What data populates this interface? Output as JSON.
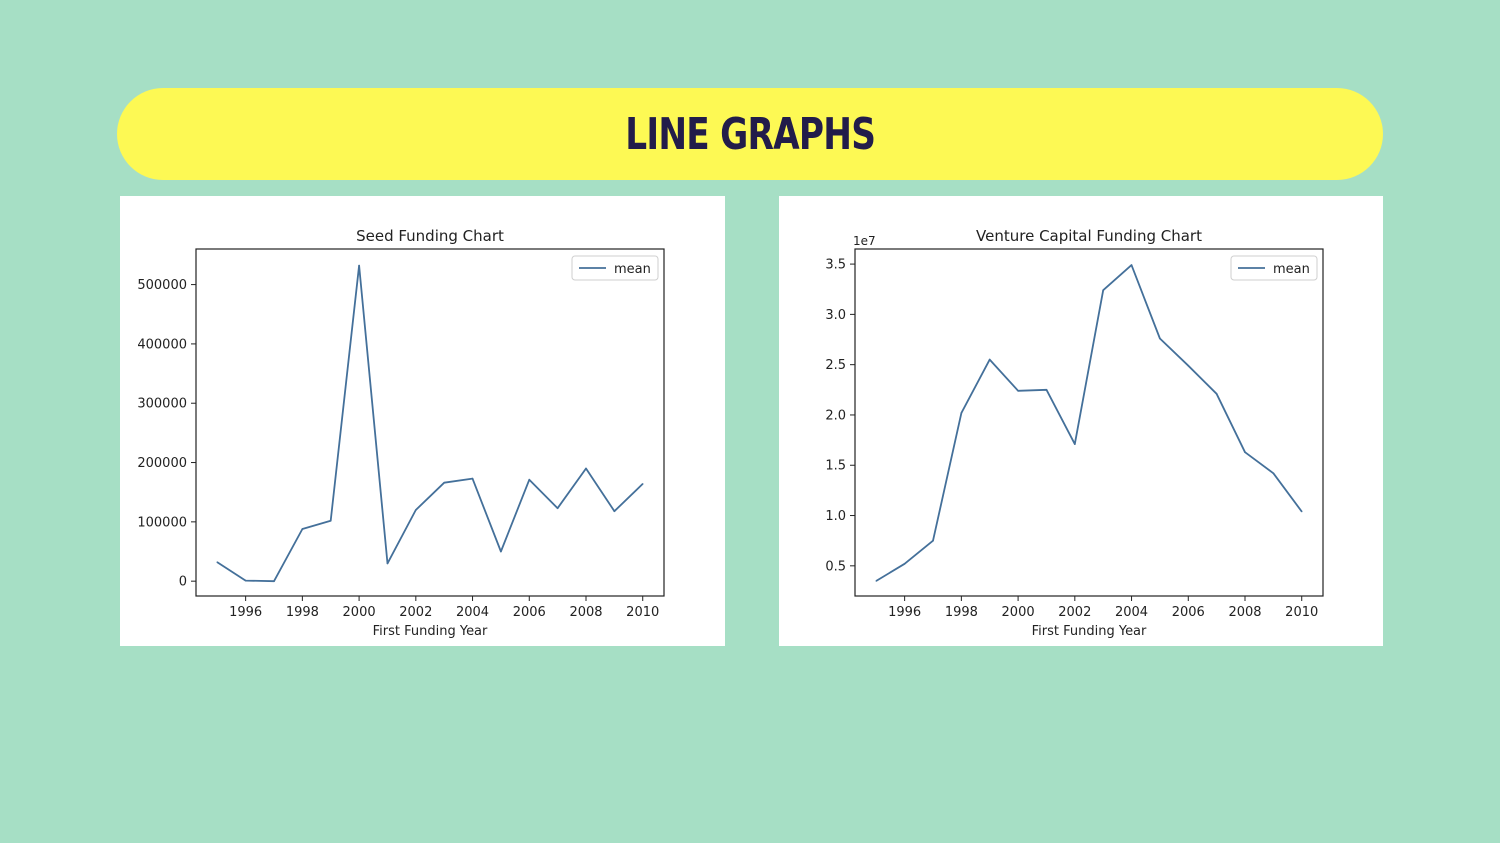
{
  "page": {
    "title": "LINE GRAPHS"
  },
  "colors": {
    "background": "#a6dfc5",
    "banner": "#fdf954",
    "title_text": "#221c4a",
    "line": "#44709a"
  },
  "chart_data": [
    {
      "type": "line",
      "title": "Seed Funding Chart",
      "xlabel": "First Funding Year",
      "ylabel": "",
      "y_offset_label": "",
      "x": [
        1995,
        1996,
        1997,
        1998,
        1999,
        2000,
        2001,
        2002,
        2003,
        2004,
        2005,
        2006,
        2007,
        2008,
        2009,
        2010
      ],
      "series": [
        {
          "name": "mean",
          "values": [
            32000,
            1000,
            0,
            88000,
            102000,
            532000,
            30000,
            120000,
            166000,
            173000,
            50000,
            171000,
            123000,
            190000,
            118000,
            164000
          ]
        }
      ],
      "xlim": [
        1994.25,
        2010.75
      ],
      "ylim": [
        -25000,
        560000
      ],
      "xticks": [
        1996,
        1998,
        2000,
        2002,
        2004,
        2006,
        2008,
        2010
      ],
      "xtick_labels": [
        "1996",
        "1998",
        "2000",
        "2002",
        "2004",
        "2006",
        "2008",
        "2010"
      ],
      "yticks": [
        0,
        100000,
        200000,
        300000,
        400000,
        500000
      ],
      "ytick_labels": [
        "0",
        "100000",
        "200000",
        "300000",
        "400000",
        "500000"
      ],
      "legend": "top-right"
    },
    {
      "type": "line",
      "title": "Venture Capital Funding Chart",
      "xlabel": "First Funding Year",
      "ylabel": "",
      "y_offset_label": "1e7",
      "x": [
        1995,
        1996,
        1997,
        1998,
        1999,
        2000,
        2001,
        2002,
        2003,
        2004,
        2005,
        2006,
        2007,
        2008,
        2009,
        2010
      ],
      "series": [
        {
          "name": "mean",
          "values": [
            0.35,
            0.52,
            0.75,
            2.02,
            2.55,
            2.24,
            2.25,
            1.71,
            3.24,
            3.49,
            2.76,
            2.49,
            2.21,
            1.63,
            1.42,
            1.04
          ]
        }
      ],
      "xlim": [
        1994.25,
        2010.75
      ],
      "ylim": [
        0.2,
        3.65
      ],
      "xticks": [
        1996,
        1998,
        2000,
        2002,
        2004,
        2006,
        2008,
        2010
      ],
      "xtick_labels": [
        "1996",
        "1998",
        "2000",
        "2002",
        "2004",
        "2006",
        "2008",
        "2010"
      ],
      "yticks": [
        0.5,
        1.0,
        1.5,
        2.0,
        2.5,
        3.0,
        3.5
      ],
      "ytick_labels": [
        "0.5",
        "1.0",
        "1.5",
        "2.0",
        "2.5",
        "3.0",
        "3.5"
      ],
      "legend": "top-right"
    }
  ]
}
